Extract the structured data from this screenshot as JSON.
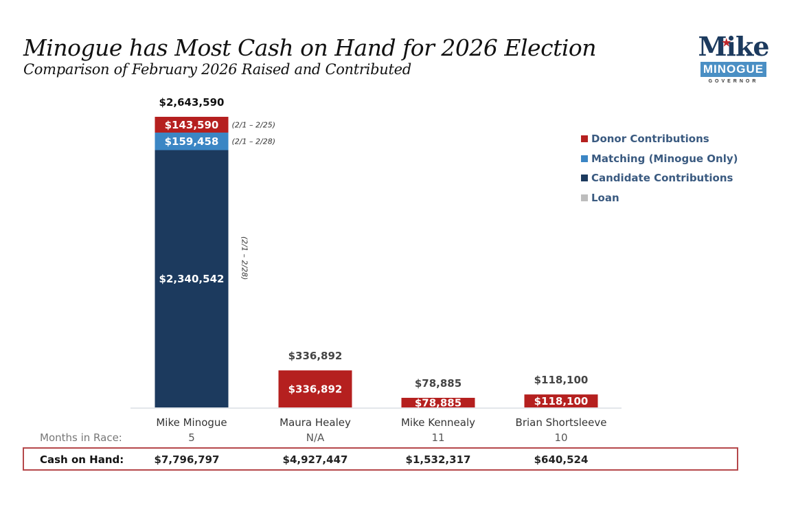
{
  "header": {
    "title": "Minogue has Most Cash on Hand for 2026 Election",
    "subtitle": "Comparison of February 2026 Raised and Contributed"
  },
  "logo": {
    "name": "Mike",
    "surname": "MINOGUE",
    "office": "GOVERNOR",
    "star_icon": "star-icon",
    "colors": {
      "navy": "#1c3a5e",
      "blue": "#4a8fc4",
      "red": "#c0282b"
    }
  },
  "chart_data": {
    "type": "bar",
    "stacked": true,
    "title": "Minogue has Most Cash on Hand for 2026 Election",
    "subtitle": "Comparison of February 2026 Raised and Contributed",
    "xlabel": "",
    "ylabel": "",
    "ylim": [
      0,
      2643590
    ],
    "grid": false,
    "legend_position": "right",
    "categories": [
      "Mike Minogue",
      "Maura Healey",
      "Mike Kennealy",
      "Brian Shortsleeve"
    ],
    "series": [
      {
        "name": "Candidate Contributions",
        "color": "#1c3a5e",
        "values": [
          2340542,
          0,
          0,
          0
        ],
        "labels": [
          "$2,340,542",
          "",
          "",
          ""
        ],
        "date_ranges": [
          "(2/1 – 2/28)",
          "",
          "",
          ""
        ]
      },
      {
        "name": "Matching (Minogue Only)",
        "color": "#3b86c4",
        "values": [
          159458,
          0,
          0,
          0
        ],
        "labels": [
          "$159,458",
          "",
          "",
          ""
        ],
        "date_ranges": [
          "(2/1 – 2/28)",
          "",
          "",
          ""
        ]
      },
      {
        "name": "Donor Contributions",
        "color": "#b5201f",
        "values": [
          143590,
          336892,
          78885,
          118100
        ],
        "labels": [
          "$143,590",
          "$336,892",
          "$78,885",
          "$118,100"
        ],
        "date_ranges": [
          "(2/1 – 2/25)",
          "",
          "",
          ""
        ]
      },
      {
        "name": "Loan",
        "color": "#bdbdbd",
        "values": [
          0,
          0,
          0,
          0
        ],
        "labels": [
          "",
          "",
          "",
          ""
        ],
        "date_ranges": [
          "",
          "",
          "",
          ""
        ]
      }
    ],
    "totals": [
      2643590,
      336892,
      78885,
      118100
    ],
    "total_labels": [
      "$2,643,590",
      "$336,892",
      "$78,885",
      "$118,100"
    ],
    "legend": [
      "Donor Contributions",
      "Matching (Minogue Only)",
      "Candidate Contributions",
      "Loan"
    ]
  },
  "table": {
    "months_label": "Months in Race:",
    "cash_label": "Cash on Hand:",
    "candidates": [
      {
        "name": "Mike Minogue",
        "months": "5",
        "cash": "$7,796,797"
      },
      {
        "name": "Maura Healey",
        "months": "N/A",
        "cash": "$4,927,447"
      },
      {
        "name": "Mike Kennealy",
        "months": "11",
        "cash": "$1,532,317"
      },
      {
        "name": "Brian Shortsleeve",
        "months": "10",
        "cash": "$640,524"
      }
    ]
  }
}
